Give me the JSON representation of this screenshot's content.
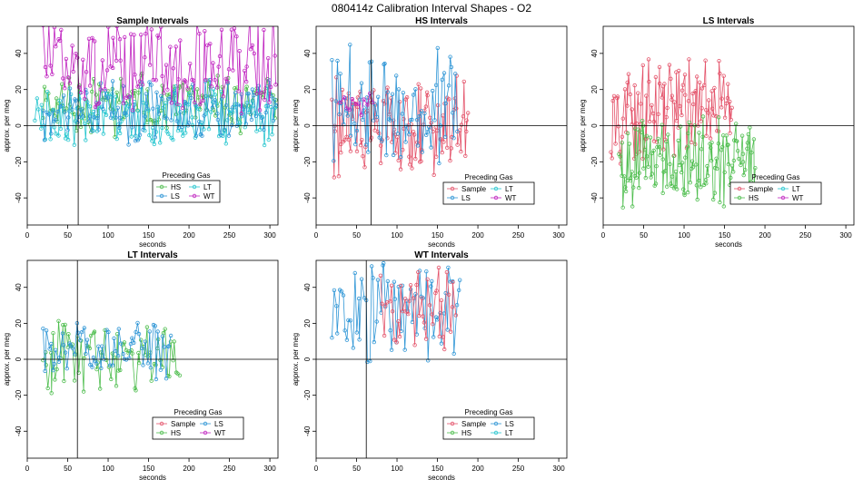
{
  "figure_title": "080414z   Calibration Interval Shapes - O2",
  "colors": {
    "Sample": "#e4546b",
    "HS": "#4fbe4f",
    "LS": "#2f96d6",
    "LT": "#26c6cf",
    "WT": "#c024c0"
  },
  "chart_data": [
    {
      "type": "scatter",
      "title": "Sample Intervals",
      "xlabel": "seconds",
      "ylabel": "approx. per meg",
      "xlim": [
        0,
        310
      ],
      "ylim": [
        -55,
        55
      ],
      "xticks": [
        0,
        50,
        100,
        150,
        200,
        250,
        300
      ],
      "yticks": [
        -40,
        -20,
        0,
        20,
        40
      ],
      "vline": 63,
      "legend": {
        "title": "Preceding Gas",
        "entries": [
          "HS",
          "LT",
          "LS",
          "WT"
        ]
      },
      "series": [
        {
          "name": "HS",
          "x_start": 20,
          "x_end": 308,
          "n": 130,
          "center": 12,
          "amp": 14,
          "seed": 11
        },
        {
          "name": "LT",
          "x_start": 10,
          "x_end": 308,
          "n": 140,
          "center": 6,
          "amp": 14,
          "seed": 23
        },
        {
          "name": "LS",
          "x_start": 20,
          "x_end": 308,
          "n": 130,
          "center": 8,
          "amp": 15,
          "seed": 37
        },
        {
          "name": "WT",
          "x_start": 20,
          "x_end": 308,
          "n": 130,
          "center": 34,
          "amp": 22,
          "seed": 51
        }
      ]
    },
    {
      "type": "scatter",
      "title": "HS Intervals",
      "xlabel": "seconds",
      "ylabel": "approx. per meg",
      "xlim": [
        0,
        310
      ],
      "ylim": [
        -55,
        55
      ],
      "xticks": [
        0,
        50,
        100,
        150,
        200,
        250,
        300
      ],
      "yticks": [
        -40,
        -20,
        0,
        20,
        40
      ],
      "vline": 68,
      "legend": {
        "title": "Preceding Gas",
        "entries": [
          "Sample",
          "LT",
          "LS",
          "WT"
        ]
      },
      "series": [
        {
          "name": "Sample",
          "x_start": 20,
          "x_end": 188,
          "n": 120,
          "center": -2,
          "amp": 24,
          "seed": 61
        },
        {
          "name": "LS",
          "x_start": 20,
          "x_end": 175,
          "n": 80,
          "center": 10,
          "amp": 26,
          "seed": 73
        },
        {
          "name": "WT",
          "x_start": 30,
          "x_end": 70,
          "n": 12,
          "center": 14,
          "amp": 10,
          "seed": 89
        }
      ]
    },
    {
      "type": "scatter",
      "title": "LS Intervals",
      "xlabel": "seconds",
      "ylabel": "approx. per meg",
      "xlim": [
        0,
        310
      ],
      "ylim": [
        -55,
        55
      ],
      "xticks": [
        0,
        50,
        100,
        150,
        200,
        250,
        300
      ],
      "yticks": [
        -40,
        -20,
        0,
        20,
        40
      ],
      "vline": null,
      "legend": {
        "title": "Preceding Gas",
        "entries": [
          "Sample",
          "LT",
          "HS",
          "WT"
        ]
      },
      "series": [
        {
          "name": "Sample",
          "x_start": 10,
          "x_end": 160,
          "n": 110,
          "center": 8,
          "amp": 22,
          "seed": 97
        },
        {
          "name": "HS",
          "x_start": 20,
          "x_end": 188,
          "n": 140,
          "center": -20,
          "amp": 20,
          "seed": 101
        }
      ]
    },
    {
      "type": "scatter",
      "title": "LT Intervals",
      "xlabel": "seconds",
      "ylabel": "approx. per meg",
      "xlim": [
        0,
        310
      ],
      "ylim": [
        -55,
        55
      ],
      "xticks": [
        0,
        50,
        100,
        150,
        200,
        250,
        300
      ],
      "yticks": [
        -40,
        -20,
        0,
        20,
        40
      ],
      "vline": 62,
      "legend": {
        "title": "Preceding Gas",
        "entries": [
          "Sample",
          "LS",
          "HS",
          "WT"
        ]
      },
      "series": [
        {
          "name": "HS",
          "x_start": 20,
          "x_end": 188,
          "n": 80,
          "center": 2,
          "amp": 16,
          "seed": 113
        },
        {
          "name": "LS",
          "x_start": 20,
          "x_end": 178,
          "n": 70,
          "center": 6,
          "amp": 14,
          "seed": 127
        }
      ]
    },
    {
      "type": "scatter",
      "title": "WT Intervals",
      "xlabel": "seconds",
      "ylabel": "approx. per meg",
      "xlim": [
        0,
        310
      ],
      "ylim": [
        -55,
        55
      ],
      "xticks": [
        0,
        50,
        100,
        150,
        200,
        250,
        300
      ],
      "yticks": [
        -40,
        -20,
        0,
        20,
        40
      ],
      "vline": 62,
      "legend": {
        "title": "Preceding Gas",
        "entries": [
          "Sample",
          "LS",
          "HS",
          "LT"
        ]
      },
      "series": [
        {
          "name": "LS",
          "x_start": 20,
          "x_end": 178,
          "n": 70,
          "center": 28,
          "amp": 24,
          "seed": 131
        },
        {
          "name": "Sample",
          "x_start": 80,
          "x_end": 172,
          "n": 45,
          "center": 30,
          "amp": 20,
          "seed": 149
        }
      ]
    }
  ]
}
